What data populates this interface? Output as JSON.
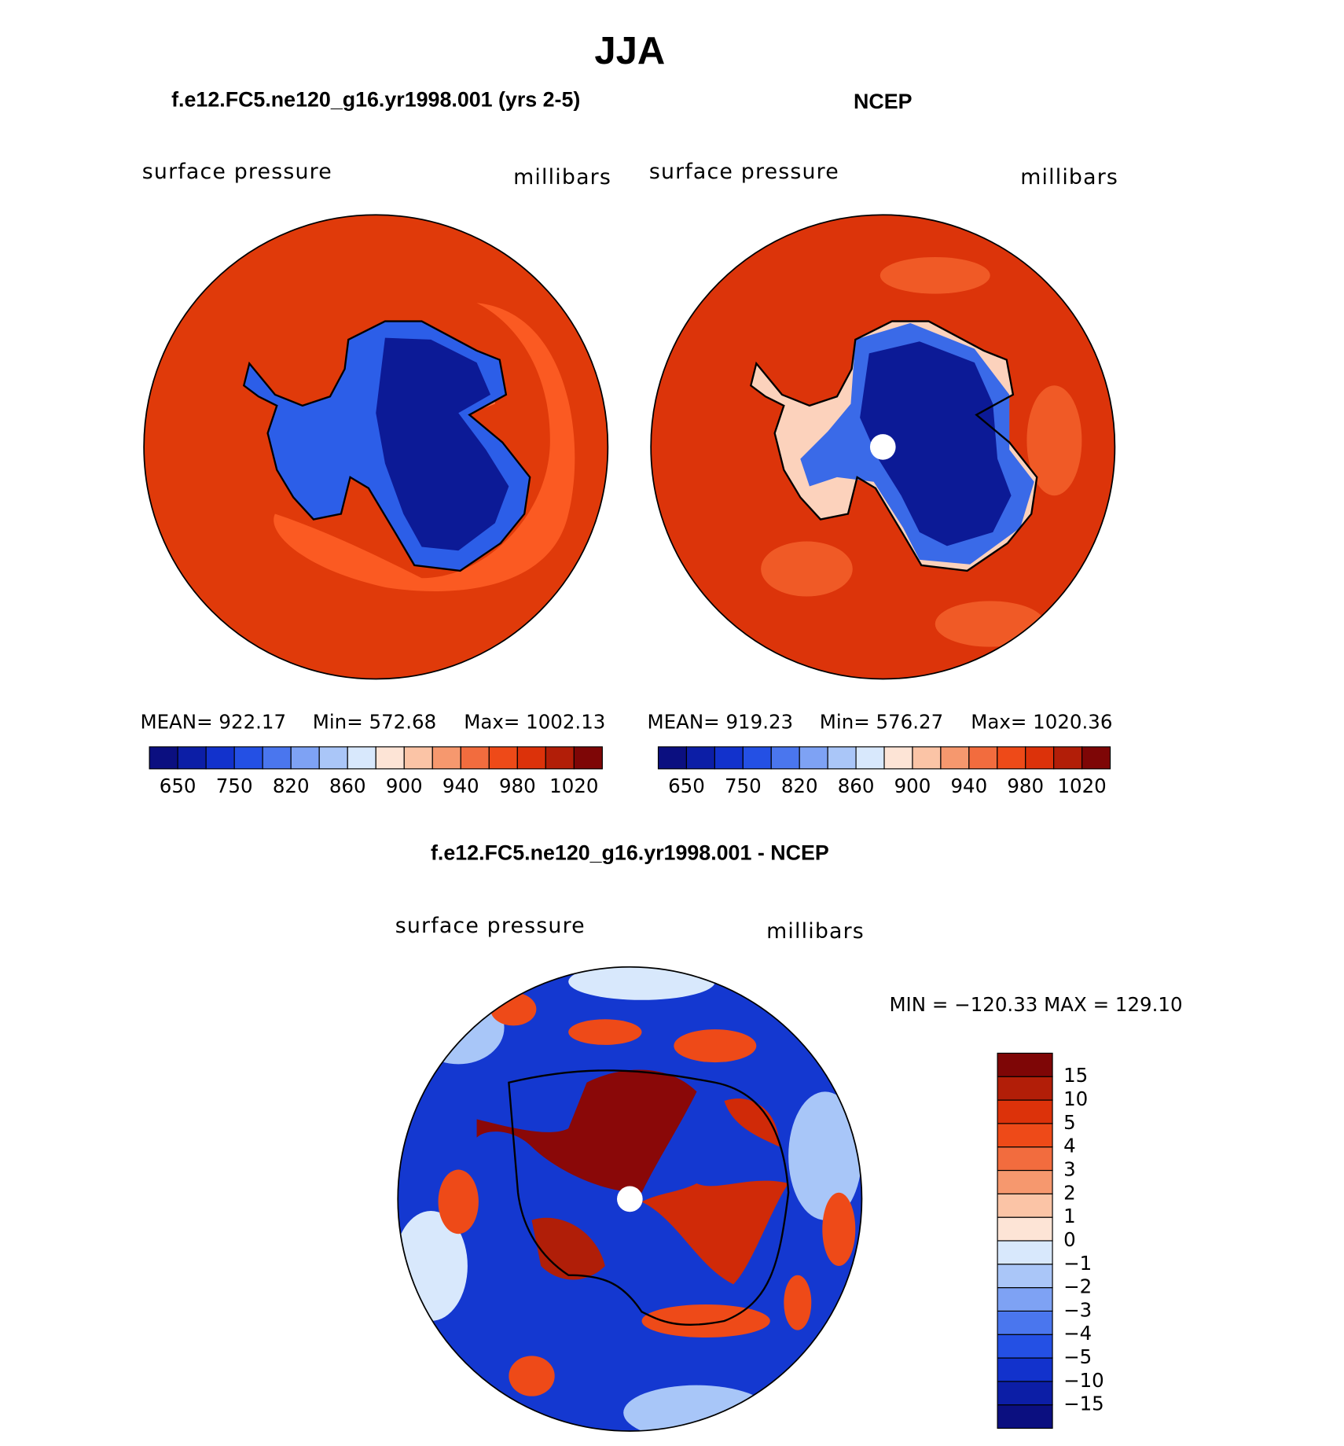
{
  "title": "JJA",
  "panels": [
    {
      "subtitle": "f.e12.FC5.ne120_g16.yr1998.001 (yrs 2-5)",
      "variable": "surface pressure",
      "units": "millibars",
      "stats": [
        "MEAN= 922.17",
        "Min= 572.68",
        "Max= 1002.13"
      ],
      "colorbar_labels": [
        "650",
        "750",
        "820",
        "860",
        "900",
        "940",
        "980",
        "1020"
      ]
    },
    {
      "subtitle": "NCEP",
      "variable": "surface pressure",
      "units": "millibars",
      "stats": [
        "MEAN= 919.23",
        "Min= 576.27",
        "Max= 1020.36"
      ],
      "colorbar_labels": [
        "650",
        "750",
        "820",
        "860",
        "900",
        "940",
        "980",
        "1020"
      ]
    },
    {
      "subtitle": "f.e12.FC5.ne120_g16.yr1998.001 - NCEP",
      "variable": "surface pressure",
      "units": "millibars",
      "stats": [
        "MIN = −120.33 MAX = 129.10"
      ],
      "colorbar_labels": [
        "15",
        "10",
        "5",
        "4",
        "3",
        "2",
        "1",
        "0",
        "−1",
        "−2",
        "−3",
        "−4",
        "−5",
        "−10",
        "−15"
      ]
    }
  ],
  "colorbar_colors": [
    "#0b0f80",
    "#0c1ea6",
    "#1232cc",
    "#2450e4",
    "#4a76ee",
    "#7ea2f4",
    "#aac6f8",
    "#d8e8fc",
    "#fde4d6",
    "#fbc4a6",
    "#f6986e",
    "#f26c3e",
    "#ee4a18",
    "#dc320a",
    "#b21e08",
    "#7e0606"
  ]
}
